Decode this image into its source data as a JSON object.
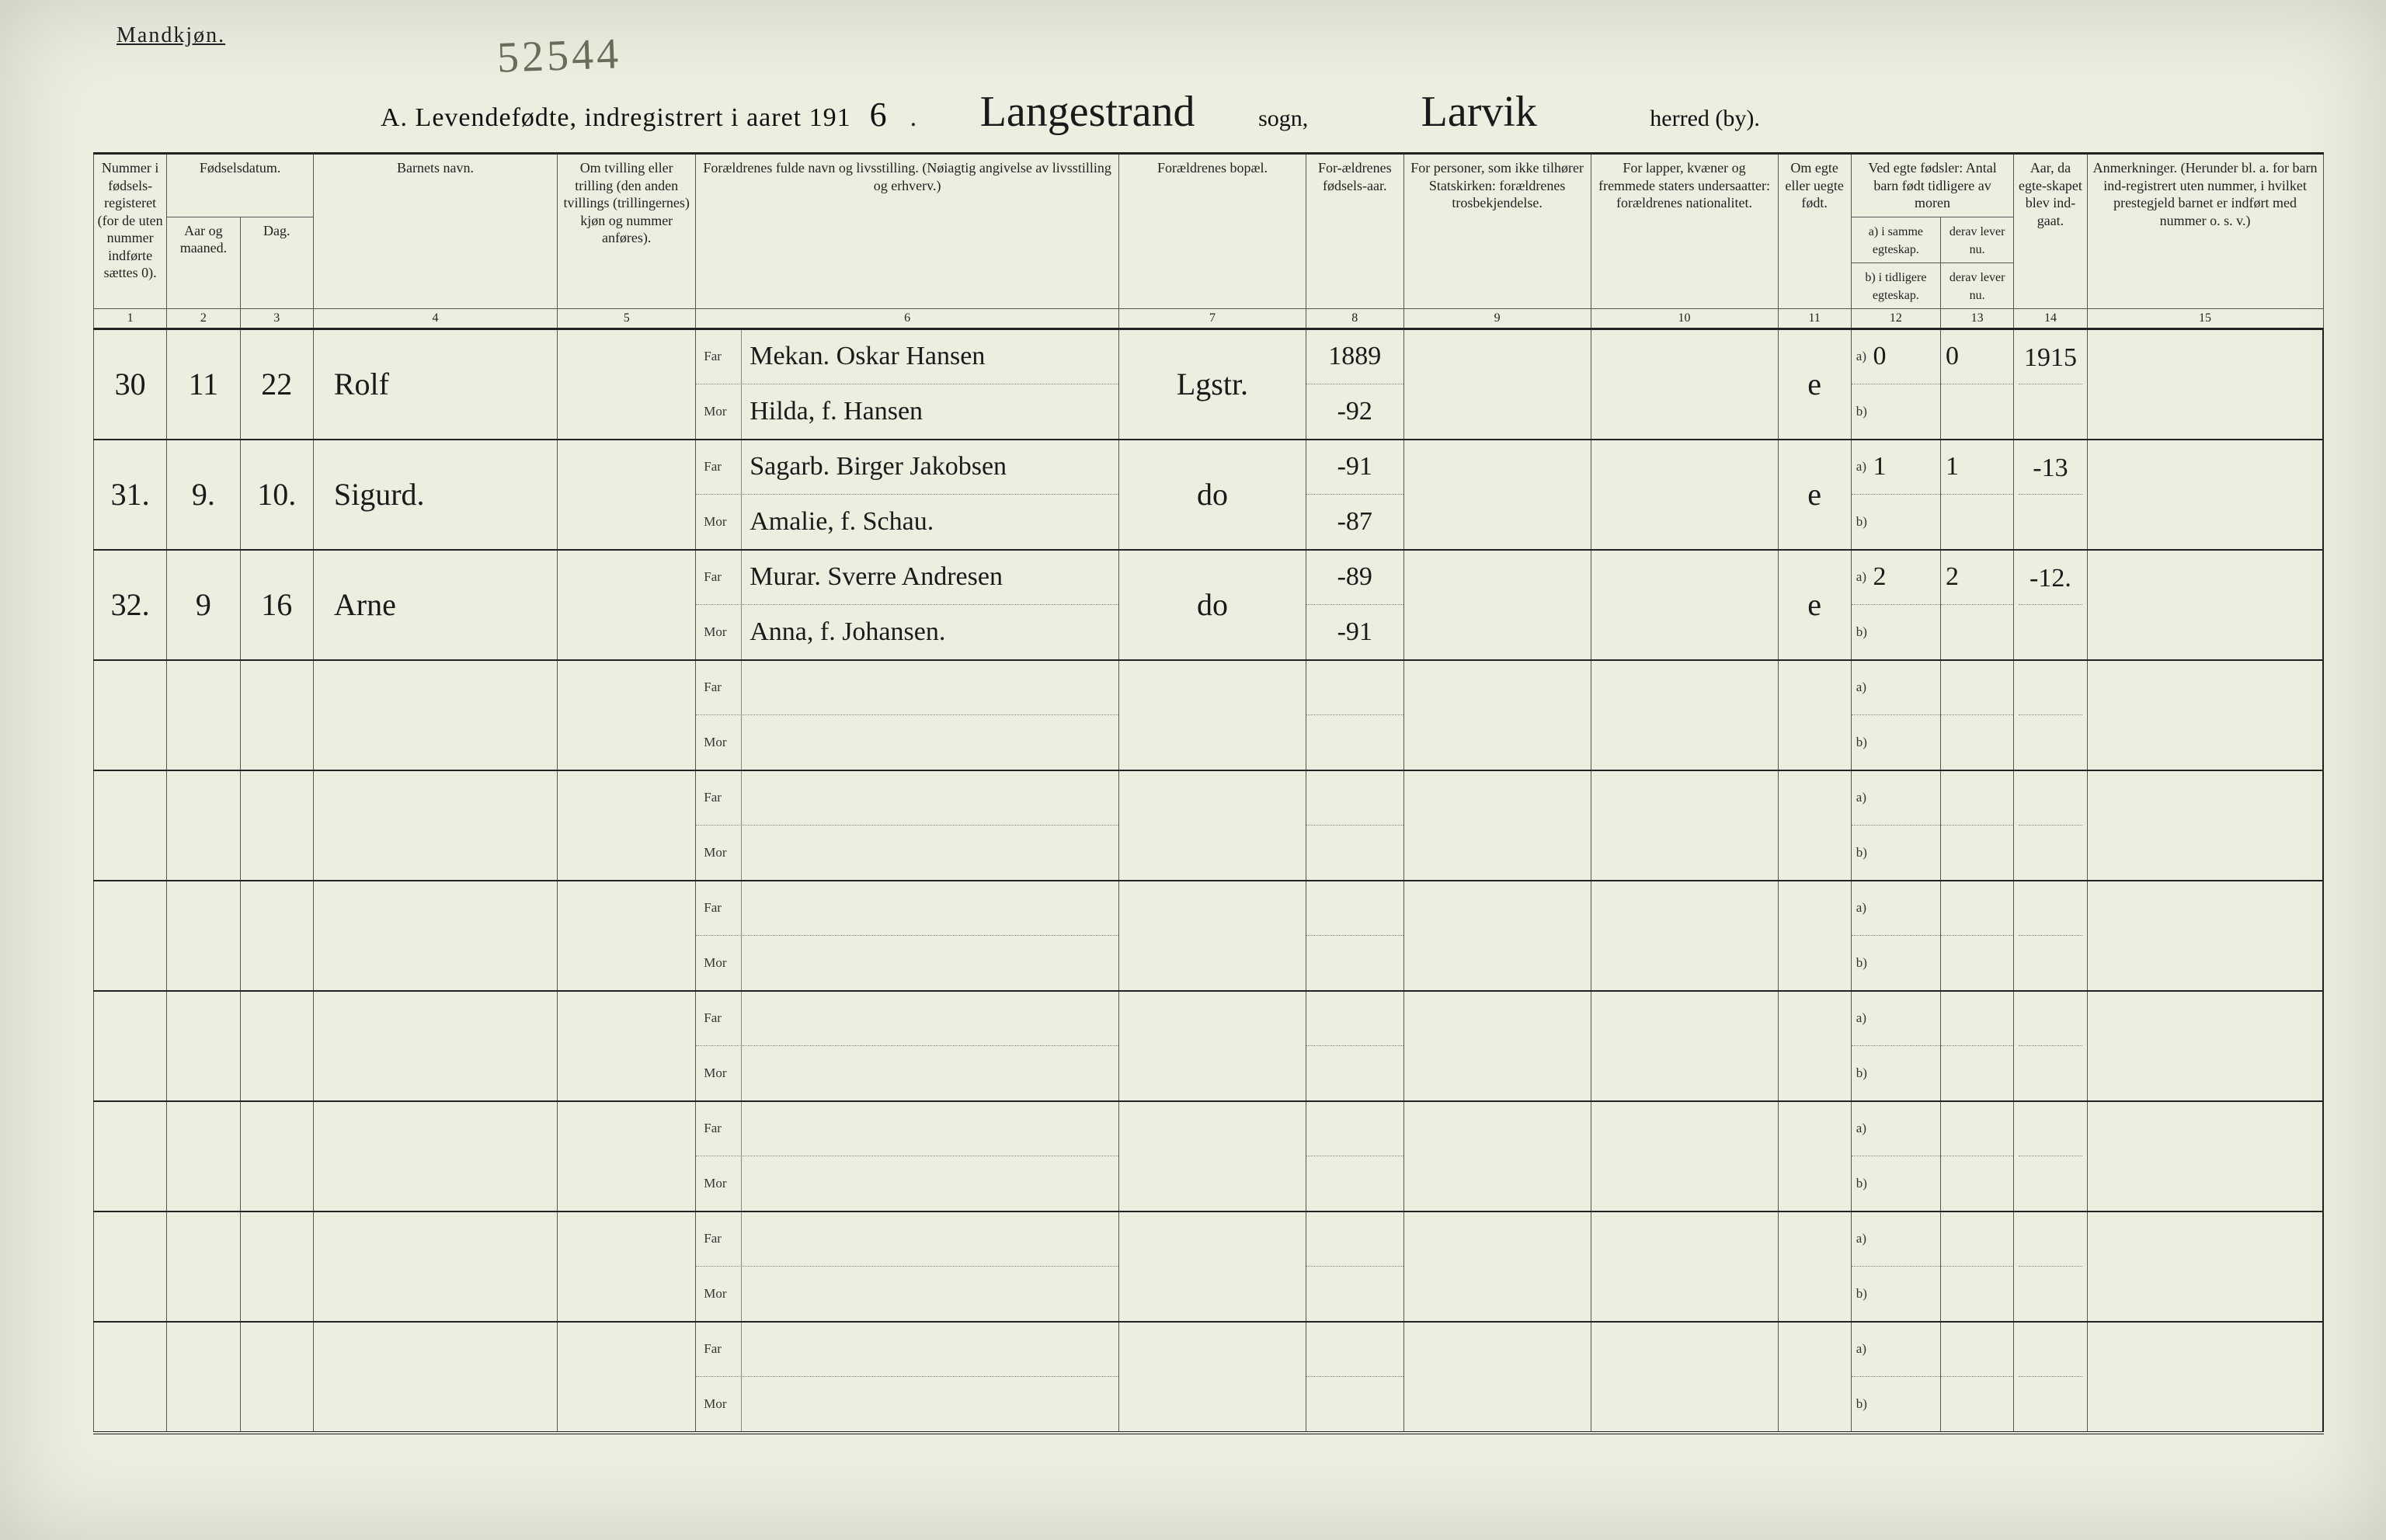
{
  "header": {
    "gender_label": "Mandkjøn.",
    "pencil_number": "52544",
    "title_prefix": "A.  Levendefødte, indregistrert i aaret 191",
    "year_last_digit": "6",
    "sogn_script": "Langestrand",
    "sogn_label": "sogn,",
    "herred_script": "Larvik",
    "herred_label": "herred (by)."
  },
  "columns": {
    "c1": "Nummer i fødsels-registeret (for de uten nummer indførte sættes 0).",
    "c2_group": "Fødselsdatum.",
    "c2": "Aar og maaned.",
    "c3": "Dag.",
    "c4": "Barnets navn.",
    "c5": "Om tvilling eller trilling (den anden tvillings (trillingernes) kjøn og nummer anføres).",
    "c6": "Forældrenes fulde navn og livsstilling. (Nøiagtig angivelse av livsstilling og erhverv.)",
    "c7": "Forældrenes bopæl.",
    "c8": "For-ældrenes fødsels-aar.",
    "c9": "For personer, som ikke tilhører Statskirken: forældrenes trosbekjendelse.",
    "c10": "For lapper, kvæner og fremmede staters undersaatter: forældrenes nationalitet.",
    "c11": "Om egte eller uegte født.",
    "c12_group": "Ved egte fødsler: Antal barn født tidligere av moren",
    "c12a": "a) i samme egteskap.",
    "c12b": "b) i tidligere egteskap.",
    "c13a": "derav lever nu.",
    "c13b": "derav lever nu.",
    "c14": "Aar, da egte-skapet blev ind-gaat.",
    "c15": "Anmerkninger. (Herunder bl. a. for barn ind-registrert uten nummer, i hvilket prestegjeld barnet er indført med nummer o. s. v.)",
    "far": "Far",
    "mor": "Mor",
    "a": "a)",
    "b": "b)"
  },
  "colnums": [
    "1",
    "2",
    "3",
    "4",
    "5",
    "6",
    "7",
    "8",
    "9",
    "10",
    "11",
    "12",
    "13",
    "14",
    "15"
  ],
  "rows": [
    {
      "num": "30",
      "month": "11",
      "day": "22",
      "name": "Rolf",
      "far": "Mekan. Oskar Hansen",
      "mor": "Hilda, f. Hansen",
      "bopel": "Lgstr.",
      "far_aar": "1889",
      "mor_aar": "-92",
      "egte": "e",
      "a_val": "0",
      "a_lev": "0",
      "aar_egt": "1915"
    },
    {
      "num": "31.",
      "month": "9.",
      "day": "10.",
      "name": "Sigurd.",
      "far": "Sagarb. Birger Jakobsen",
      "mor": "Amalie, f. Schau.",
      "bopel": "do",
      "far_aar": "-91",
      "mor_aar": "-87",
      "egte": "e",
      "a_val": "1",
      "a_lev": "1",
      "aar_egt": "-13"
    },
    {
      "num": "32.",
      "month": "9",
      "day": "16",
      "name": "Arne",
      "far": "Murar. Sverre Andresen",
      "mor": "Anna, f. Johansen.",
      "bopel": "do",
      "far_aar": "-89",
      "mor_aar": "-91",
      "egte": "e",
      "a_val": "2",
      "a_lev": "2",
      "aar_egt": "-12."
    },
    {},
    {},
    {},
    {},
    {},
    {},
    {}
  ]
}
